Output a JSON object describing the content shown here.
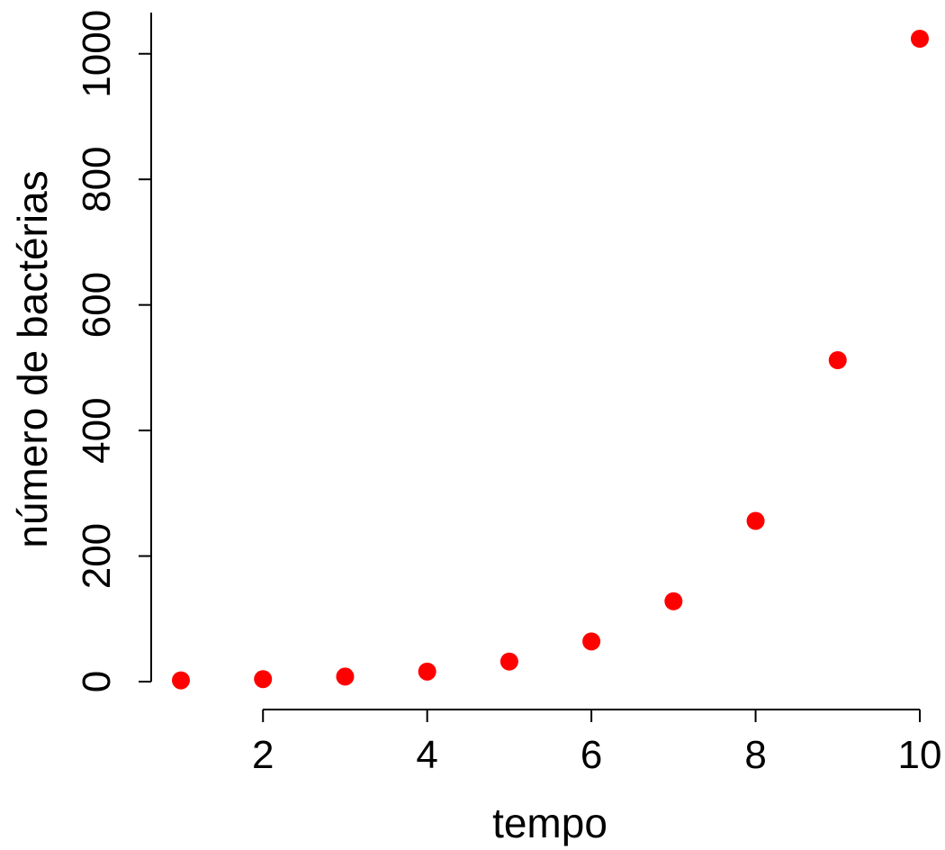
{
  "chart_data": {
    "type": "scatter",
    "title": "",
    "xlabel": "tempo",
    "ylabel": "número de bactérias",
    "x": [
      1,
      2,
      3,
      4,
      5,
      6,
      7,
      8,
      9,
      10
    ],
    "y": [
      2,
      4,
      8,
      16,
      32,
      64,
      128,
      256,
      512,
      1024
    ],
    "xlim": [
      1,
      10
    ],
    "ylim": [
      0,
      1024
    ],
    "x_ticks": [
      2,
      4,
      6,
      8,
      10
    ],
    "y_ticks": [
      0,
      200,
      400,
      600,
      800,
      1000
    ],
    "x_tick_labels": [
      "2",
      "4",
      "6",
      "8",
      "10"
    ],
    "y_tick_labels": [
      "0",
      "200",
      "400",
      "600",
      "800",
      "1000"
    ],
    "grid": false,
    "legend": "none",
    "point_color": "#ff0000"
  }
}
